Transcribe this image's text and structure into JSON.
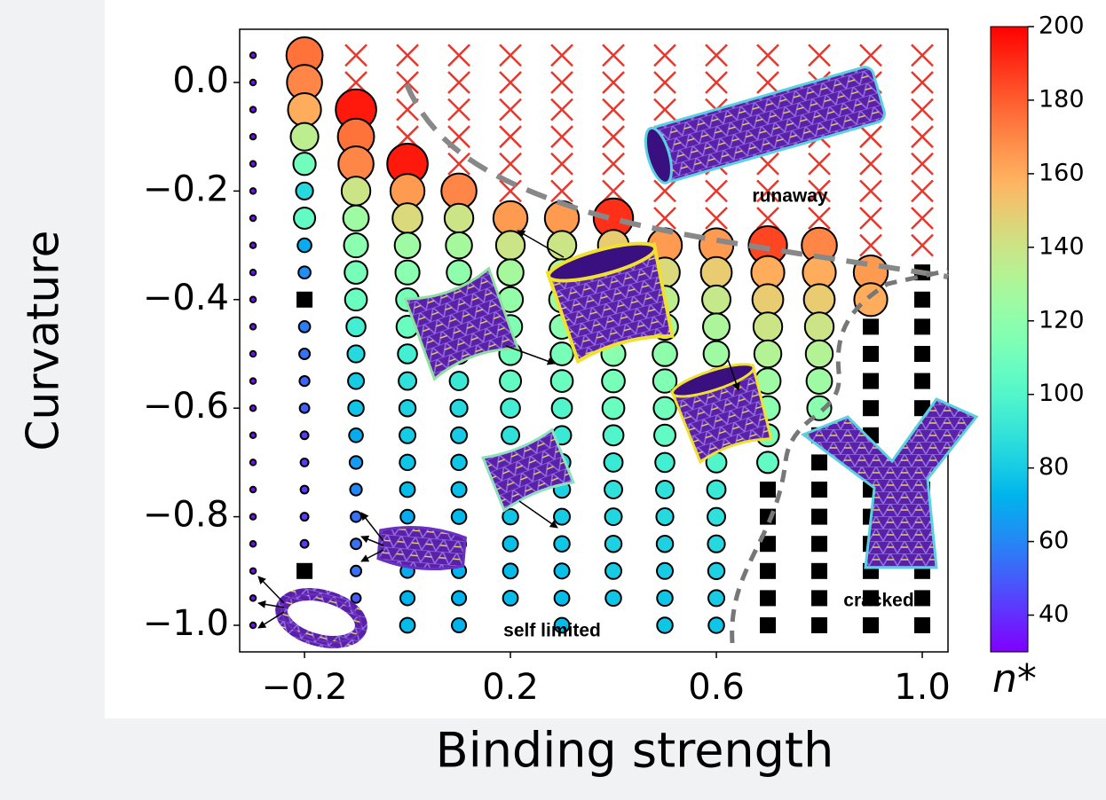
{
  "chart_data": {
    "type": "scatter",
    "xlabel": "Binding strength",
    "ylabel": "Curvature",
    "colorbar_label": "n*",
    "annotations": [
      "runaway",
      "self limited",
      "cracked"
    ],
    "xlim": [
      -0.326,
      1.05
    ],
    "ylim": [
      -1.049,
      0.098
    ],
    "xticks": [
      {
        "value": -0.2,
        "label": "−0.2"
      },
      0.2,
      0.6,
      {
        "value": 1.0,
        "label": "1.0"
      }
    ],
    "yticks": [
      {
        "value": 0,
        "label": "0.0"
      },
      {
        "value": -0.2,
        "label": "−0.2"
      },
      {
        "value": -0.4,
        "label": "−0.4"
      },
      {
        "value": -0.6,
        "label": "−0.6"
      },
      {
        "value": -0.8,
        "label": "−0.8"
      },
      {
        "value": -1.0,
        "label": "−1.0"
      }
    ],
    "clim": [
      30,
      200
    ],
    "cticks": [
      40,
      60,
      80,
      100,
      120,
      140,
      160,
      180,
      200
    ],
    "colormap": "rainbow",
    "cross_color": "#e8372c",
    "square_color": "#000000",
    "circles": [
      {
        "x": -0.3,
        "y": [
          0.05,
          0,
          -0.05,
          -0.1,
          -0.15,
          -0.2,
          -0.25,
          -0.3,
          -0.35,
          -0.4,
          -0.45,
          -0.5,
          -0.55,
          -0.6,
          -0.65,
          -0.7,
          -0.75,
          -0.8,
          -0.85,
          -0.9,
          -0.95,
          -1.0
        ],
        "values": [
          32,
          32,
          32,
          32,
          32,
          32,
          32,
          32,
          32,
          32,
          32,
          32,
          32,
          32,
          32,
          32,
          32,
          32,
          32,
          32,
          32,
          32
        ]
      },
      {
        "x": -0.2,
        "y": [
          0.05,
          0,
          -0.05,
          -0.1,
          -0.15,
          -0.2,
          -0.25,
          -0.3,
          -0.35,
          -0.45,
          -0.5,
          -0.55,
          -0.6,
          -0.65,
          -0.7,
          -0.75,
          -0.8,
          -0.85
        ],
        "values": [
          175,
          170,
          160,
          135,
          110,
          85,
          105,
          70,
          62,
          58,
          55,
          52,
          50,
          42,
          42,
          42,
          42,
          42
        ]
      },
      {
        "x": -0.1,
        "y": [
          -0.05,
          -0.1,
          -0.15,
          -0.2,
          -0.25,
          -0.3,
          -0.35,
          -0.4,
          -0.45,
          -0.5,
          -0.55,
          -0.6,
          -0.65,
          -0.7,
          -0.75,
          -0.8,
          -0.85,
          -0.9,
          -0.95
        ],
        "values": [
          195,
          175,
          170,
          140,
          125,
          118,
          112,
          108,
          95,
          85,
          80,
          78,
          70,
          65,
          60,
          55,
          55,
          55,
          50
        ]
      },
      {
        "x": 0.0,
        "y": [
          -0.15,
          -0.2,
          -0.25,
          -0.3,
          -0.35,
          -0.4,
          -0.45,
          -0.5,
          -0.55,
          -0.6,
          -0.65,
          -0.7,
          -0.75,
          -0.8,
          -0.85,
          -0.9,
          -0.95,
          -1.0
        ],
        "values": [
          195,
          165,
          145,
          125,
          118,
          112,
          108,
          95,
          88,
          82,
          80,
          78,
          75,
          70,
          70,
          70,
          72,
          75
        ]
      },
      {
        "x": 0.1,
        "y": [
          -0.2,
          -0.25,
          -0.3,
          -0.35,
          -0.4,
          -0.45,
          -0.5,
          -0.55,
          -0.6,
          -0.65,
          -0.7,
          -0.75,
          -0.8,
          -0.85,
          -0.9,
          -0.95,
          -1.0
        ],
        "values": [
          170,
          140,
          128,
          120,
          115,
          110,
          100,
          92,
          85,
          80,
          78,
          76,
          74,
          72,
          72,
          72,
          72
        ]
      },
      {
        "x": 0.2,
        "y": [
          -0.25,
          -0.3,
          -0.35,
          -0.4,
          -0.45,
          -0.5,
          -0.55,
          -0.6,
          -0.65,
          -0.7,
          -0.75,
          -0.8,
          -0.85,
          -0.9,
          -0.95
        ],
        "values": [
          165,
          140,
          128,
          122,
          115,
          110,
          105,
          95,
          88,
          82,
          80,
          78,
          76,
          75,
          75
        ]
      },
      {
        "x": 0.3,
        "y": [
          -0.25,
          -0.3,
          -0.35,
          -0.4,
          -0.45,
          -0.5,
          -0.55,
          -0.6,
          -0.65,
          -0.7,
          -0.75,
          -0.8,
          -0.85,
          -0.9,
          -0.95,
          -1.0
        ],
        "values": [
          165,
          140,
          130,
          125,
          118,
          112,
          108,
          100,
          92,
          85,
          82,
          80,
          78,
          76,
          75,
          75
        ]
      },
      {
        "x": 0.4,
        "y": [
          -0.25,
          -0.3,
          -0.35,
          -0.4,
          -0.45,
          -0.5,
          -0.55,
          -0.6,
          -0.65,
          -0.7,
          -0.75,
          -0.8,
          -0.85,
          -0.9,
          -0.95
        ],
        "values": [
          190,
          150,
          138,
          130,
          125,
          118,
          112,
          108,
          100,
          92,
          88,
          84,
          82,
          80,
          78
        ]
      },
      {
        "x": 0.5,
        "y": [
          -0.3,
          -0.35,
          -0.4,
          -0.45,
          -0.5,
          -0.55,
          -0.6,
          -0.65,
          -0.7,
          -0.75,
          -0.8,
          -0.85,
          -0.9,
          -0.95,
          -1.0
        ],
        "values": [
          165,
          145,
          135,
          128,
          120,
          115,
          110,
          105,
          95,
          88,
          85,
          82,
          80,
          78,
          78
        ]
      },
      {
        "x": 0.6,
        "y": [
          -0.3,
          -0.35,
          -0.4,
          -0.45,
          -0.5,
          -0.55,
          -0.6,
          -0.65,
          -0.7,
          -0.75,
          -0.8,
          -0.85,
          -0.9,
          -0.95,
          -1.0
        ],
        "values": [
          165,
          150,
          138,
          130,
          125,
          118,
          112,
          108,
          100,
          92,
          88,
          85,
          82,
          80,
          78
        ]
      },
      {
        "x": 0.7,
        "y": [
          -0.3,
          -0.35,
          -0.4,
          -0.45,
          -0.5,
          -0.55,
          -0.6,
          -0.65,
          -0.7
        ],
        "values": [
          185,
          160,
          150,
          140,
          132,
          125,
          118,
          110,
          105
        ]
      },
      {
        "x": 0.8,
        "y": [
          -0.3,
          -0.35,
          -0.4,
          -0.45,
          -0.5,
          -0.55,
          -0.6
        ],
        "values": [
          170,
          160,
          150,
          140,
          132,
          125,
          118
        ]
      },
      {
        "x": 0.9,
        "y": [
          -0.35,
          -0.4
        ],
        "values": [
          165,
          160
        ]
      }
    ],
    "crosses": [
      {
        "x": -0.1,
        "y": [
          0.05,
          0
        ]
      },
      {
        "x": 0.0,
        "y": [
          0.05,
          0,
          -0.05,
          -0.1
        ]
      },
      {
        "x": 0.1,
        "y": [
          0.05,
          0,
          -0.05,
          -0.1,
          -0.15
        ]
      },
      {
        "x": 0.2,
        "y": [
          0.05,
          0,
          -0.05,
          -0.1,
          -0.15,
          -0.2
        ]
      },
      {
        "x": 0.3,
        "y": [
          0.05,
          0,
          -0.05,
          -0.1,
          -0.15,
          -0.2
        ]
      },
      {
        "x": 0.4,
        "y": [
          0.05,
          0,
          -0.05,
          -0.1,
          -0.15,
          -0.2
        ]
      },
      {
        "x": 0.5,
        "y": [
          0.05,
          0,
          -0.05,
          -0.1,
          -0.15,
          -0.2,
          -0.25
        ]
      },
      {
        "x": 0.6,
        "y": [
          0.05,
          0,
          -0.05,
          -0.1,
          -0.15,
          -0.2,
          -0.25
        ]
      },
      {
        "x": 0.7,
        "y": [
          0.05,
          0,
          -0.05,
          -0.1,
          -0.15,
          -0.2,
          -0.25
        ]
      },
      {
        "x": 0.8,
        "y": [
          0.05,
          0,
          -0.05,
          -0.1,
          -0.15,
          -0.2,
          -0.25
        ]
      },
      {
        "x": 0.9,
        "y": [
          0.05,
          0,
          -0.05,
          -0.1,
          -0.15,
          -0.2,
          -0.25,
          -0.3
        ]
      },
      {
        "x": 1.0,
        "y": [
          0.05,
          0,
          -0.05,
          -0.1,
          -0.15,
          -0.2,
          -0.25,
          -0.3
        ]
      }
    ],
    "squares": [
      {
        "x": -0.2,
        "y": [
          -0.4,
          -0.9
        ]
      },
      {
        "x": 0.7,
        "y": [
          -0.75,
          -0.8,
          -0.85,
          -0.9,
          -0.95,
          -1.0
        ]
      },
      {
        "x": 0.8,
        "y": [
          -0.65,
          -0.7,
          -0.75,
          -0.8,
          -0.85,
          -0.9,
          -0.95,
          -1.0
        ]
      },
      {
        "x": 0.9,
        "y": [
          -0.45,
          -0.5,
          -0.55,
          -0.6,
          -0.65,
          -0.7,
          -0.75,
          -0.8,
          -0.85,
          -0.9,
          -0.95,
          -1.0
        ]
      },
      {
        "x": 1.0,
        "y": [
          -0.35,
          -0.4,
          -0.45,
          -0.5,
          -0.55,
          -0.6,
          -0.65,
          -0.7,
          -0.75,
          -0.8,
          -0.85,
          -0.9,
          -0.95,
          -1.0
        ]
      }
    ]
  }
}
